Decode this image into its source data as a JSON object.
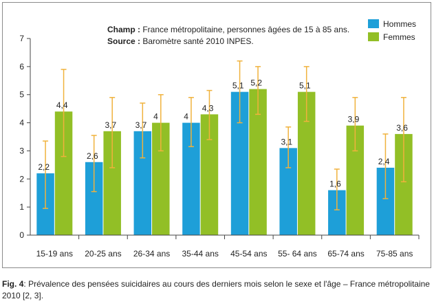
{
  "caption": {
    "label": "Fig. 4",
    "text": ": Prévalence des pensées suicidaires au cours des derniers mois selon le sexe et l'âge – France métropolitaine 2010 [2, 3]."
  },
  "notes": {
    "champ_label": "Champ :",
    "champ_text": " France métropolitaine, personnes âgées de 15 à 85 ans.",
    "source_label": "Source :",
    "source_text": " Baromètre santé 2010 INPES."
  },
  "colors": {
    "hommes": "#1e9fd8",
    "femmes": "#92bf26",
    "error_bar": "#f0b23c",
    "axis": "#444444"
  },
  "chart_data": {
    "type": "bar",
    "categories": [
      "15-19 ans",
      "20-25 ans",
      "26-34 ans",
      "35-44 ans",
      "45-54 ans",
      "55- 64 ans",
      "65-74 ans",
      "75-85 ans"
    ],
    "series": [
      {
        "name": "Hommes",
        "values": [
          2.2,
          2.6,
          3.7,
          4,
          5.1,
          3.1,
          1.6,
          2.4
        ],
        "labels": [
          "2,2",
          "2,6",
          "3,7",
          "4",
          "5,1",
          "3,1",
          "1,6",
          "2,4"
        ],
        "ci_low": [
          0.95,
          1.55,
          2.75,
          3.15,
          4.0,
          2.4,
          0.9,
          1.3
        ],
        "ci_high": [
          3.35,
          3.55,
          4.7,
          4.9,
          6.2,
          3.85,
          2.35,
          3.6
        ]
      },
      {
        "name": "Femmes",
        "values": [
          4.4,
          3.7,
          4,
          4.3,
          5.2,
          5.1,
          3.9,
          3.6
        ],
        "labels": [
          "4,4",
          "3,7",
          "4",
          "4,3",
          "5,2",
          "5,1",
          "3,9",
          "3,6"
        ],
        "ci_low": [
          2.8,
          2.4,
          3.0,
          3.4,
          4.3,
          4.05,
          3.0,
          1.9
        ],
        "ci_high": [
          5.9,
          4.9,
          5.0,
          5.15,
          6.0,
          6.0,
          4.9,
          4.9
        ]
      }
    ],
    "y_ticks": [
      "0",
      "1",
      "2",
      "3",
      "4",
      "5",
      "6",
      "7"
    ],
    "ylim": [
      0,
      7
    ],
    "legend_position": "top-right",
    "grid": false
  }
}
